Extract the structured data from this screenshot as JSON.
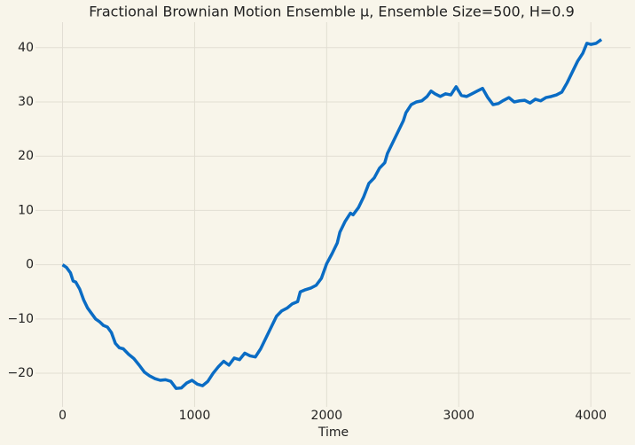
{
  "chart_data": {
    "type": "line",
    "title": "Fractional Brownian Motion Ensemble μ, Ensemble Size=500, H=0.9",
    "x_label": "Time",
    "x": [
      0,
      30,
      60,
      80,
      100,
      130,
      160,
      190,
      220,
      250,
      280,
      310,
      340,
      370,
      400,
      430,
      460,
      500,
      540,
      580,
      620,
      660,
      700,
      740,
      780,
      820,
      860,
      900,
      940,
      980,
      1020,
      1060,
      1100,
      1140,
      1180,
      1220,
      1260,
      1300,
      1340,
      1380,
      1420,
      1460,
      1500,
      1540,
      1580,
      1620,
      1660,
      1700,
      1740,
      1780,
      1800,
      1840,
      1880,
      1920,
      1960,
      2000,
      2040,
      2080,
      2100,
      2140,
      2180,
      2200,
      2240,
      2280,
      2320,
      2360,
      2400,
      2440,
      2460,
      2500,
      2540,
      2580,
      2600,
      2640,
      2680,
      2720,
      2760,
      2790,
      2820,
      2860,
      2900,
      2940,
      2980,
      3020,
      3060,
      3100,
      3140,
      3180,
      3220,
      3260,
      3300,
      3340,
      3380,
      3420,
      3460,
      3500,
      3540,
      3580,
      3620,
      3660,
      3700,
      3740,
      3780,
      3820,
      3860,
      3900,
      3940,
      3970,
      4000,
      4040,
      4080
    ],
    "series": [
      {
        "name": "Ensemble μ",
        "color": "#0a6cc4",
        "values": [
          0,
          -0.5,
          -1.5,
          -3,
          -3.2,
          -4.5,
          -6.5,
          -8,
          -9,
          -10,
          -10.5,
          -11.2,
          -11.5,
          -12.5,
          -14.5,
          -15.3,
          -15.5,
          -16.5,
          -17.3,
          -18.5,
          -19.8,
          -20.5,
          -21,
          -21.3,
          -21.2,
          -21.5,
          -22.8,
          -22.7,
          -21.8,
          -21.3,
          -22,
          -22.3,
          -21.5,
          -20,
          -18.8,
          -17.8,
          -18.5,
          -17.2,
          -17.5,
          -16.3,
          -16.8,
          -17,
          -15.5,
          -13.5,
          -11.5,
          -9.5,
          -8.5,
          -8,
          -7.2,
          -6.8,
          -5,
          -4.6,
          -4.3,
          -3.8,
          -2.5,
          0.2,
          2,
          4,
          6,
          8,
          9.5,
          9.2,
          10.5,
          12.5,
          15,
          16,
          17.8,
          18.8,
          20.5,
          22.5,
          24.5,
          26.5,
          28,
          29.5,
          30,
          30.2,
          31,
          32,
          31.5,
          31,
          31.5,
          31.3,
          32.8,
          31.2,
          31,
          31.5,
          32,
          32.5,
          30.8,
          29.5,
          29.7,
          30.3,
          30.8,
          30,
          30.2,
          30.3,
          29.8,
          30.5,
          30.2,
          30.8,
          31,
          31.3,
          31.8,
          33.5,
          35.5,
          37.5,
          39,
          40.8,
          40.6,
          40.8,
          41.5
        ]
      }
    ],
    "xlim": [
      -205,
      4301
    ],
    "xticks": [
      0,
      1000,
      2000,
      3000,
      4000
    ],
    "ylim": [
      -26.2,
      44.7
    ],
    "yticks": [
      {
        "value": -20,
        "label": "−20"
      },
      {
        "value": -10,
        "label": "−10"
      },
      0,
      10,
      20,
      30,
      40
    ],
    "grid": true
  }
}
